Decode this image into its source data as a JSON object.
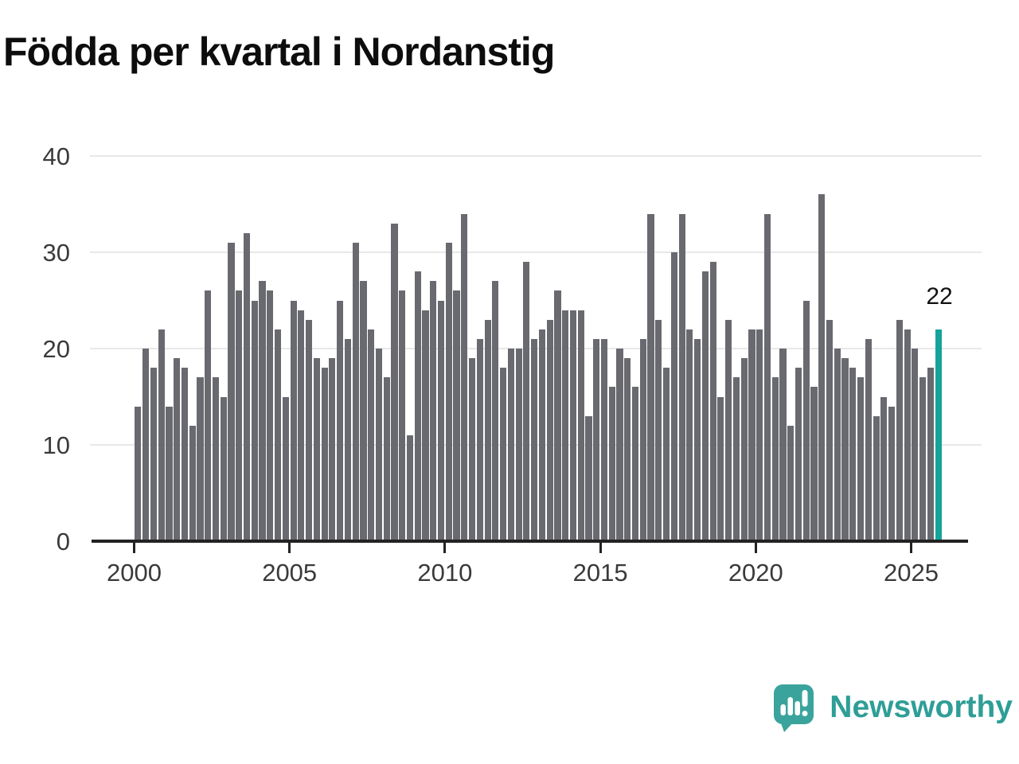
{
  "logo": {
    "text": "Newsworthy"
  },
  "chart_data": {
    "type": "bar",
    "title": "Födda per kvartal i Nordanstig",
    "ylabel": "",
    "xlabel": "",
    "ylim": [
      0,
      40
    ],
    "yticks": [
      0,
      10,
      20,
      30,
      40
    ],
    "xtick_years": [
      2000,
      2005,
      2010,
      2015,
      2020,
      2025
    ],
    "grid": "horizontal",
    "legend": "none",
    "bar_color": "#696970",
    "highlight_color": "#15a39b",
    "axis_color": "#222222",
    "grid_color": "#e8e8e8",
    "tick_label_color": "#3a3a3a",
    "annotation": {
      "text": "22",
      "color": "#111111",
      "applies_to": "last bar"
    },
    "highlight_last_bar": true,
    "data_by_year": [
      {
        "year": 2000,
        "values": [
          14,
          20,
          18,
          22
        ]
      },
      {
        "year": 2001,
        "values": [
          14,
          19,
          18,
          12
        ]
      },
      {
        "year": 2002,
        "values": [
          17,
          26,
          17,
          15
        ]
      },
      {
        "year": 2003,
        "values": [
          31,
          26,
          32,
          25
        ]
      },
      {
        "year": 2004,
        "values": [
          27,
          26,
          22,
          15
        ]
      },
      {
        "year": 2005,
        "values": [
          25,
          24,
          23,
          19
        ]
      },
      {
        "year": 2006,
        "values": [
          18,
          19,
          25,
          21
        ]
      },
      {
        "year": 2007,
        "values": [
          31,
          27,
          22,
          20
        ]
      },
      {
        "year": 2008,
        "values": [
          17,
          33,
          26,
          11
        ]
      },
      {
        "year": 2009,
        "values": [
          28,
          24,
          27,
          25
        ]
      },
      {
        "year": 2010,
        "values": [
          31,
          26,
          34,
          19
        ]
      },
      {
        "year": 2011,
        "values": [
          21,
          23,
          27,
          18
        ]
      },
      {
        "year": 2012,
        "values": [
          20,
          20,
          29,
          21
        ]
      },
      {
        "year": 2013,
        "values": [
          22,
          23,
          26,
          24
        ]
      },
      {
        "year": 2014,
        "values": [
          24,
          24,
          13,
          21
        ]
      },
      {
        "year": 2015,
        "values": [
          21,
          16,
          20,
          19
        ]
      },
      {
        "year": 2016,
        "values": [
          16,
          21,
          34,
          23
        ]
      },
      {
        "year": 2017,
        "values": [
          18,
          30,
          34,
          22
        ]
      },
      {
        "year": 2018,
        "values": [
          21,
          28,
          29,
          15
        ]
      },
      {
        "year": 2019,
        "values": [
          23,
          17,
          19,
          22
        ]
      },
      {
        "year": 2020,
        "values": [
          22,
          34,
          17,
          20
        ]
      },
      {
        "year": 2021,
        "values": [
          12,
          18,
          25,
          16
        ]
      },
      {
        "year": 2022,
        "values": [
          36,
          23,
          20,
          19
        ]
      },
      {
        "year": 2023,
        "values": [
          18,
          17,
          21,
          13
        ]
      },
      {
        "year": 2024,
        "values": [
          15,
          14,
          23,
          22
        ]
      },
      {
        "year": 2025,
        "values": [
          20,
          17,
          18,
          22
        ]
      }
    ]
  }
}
